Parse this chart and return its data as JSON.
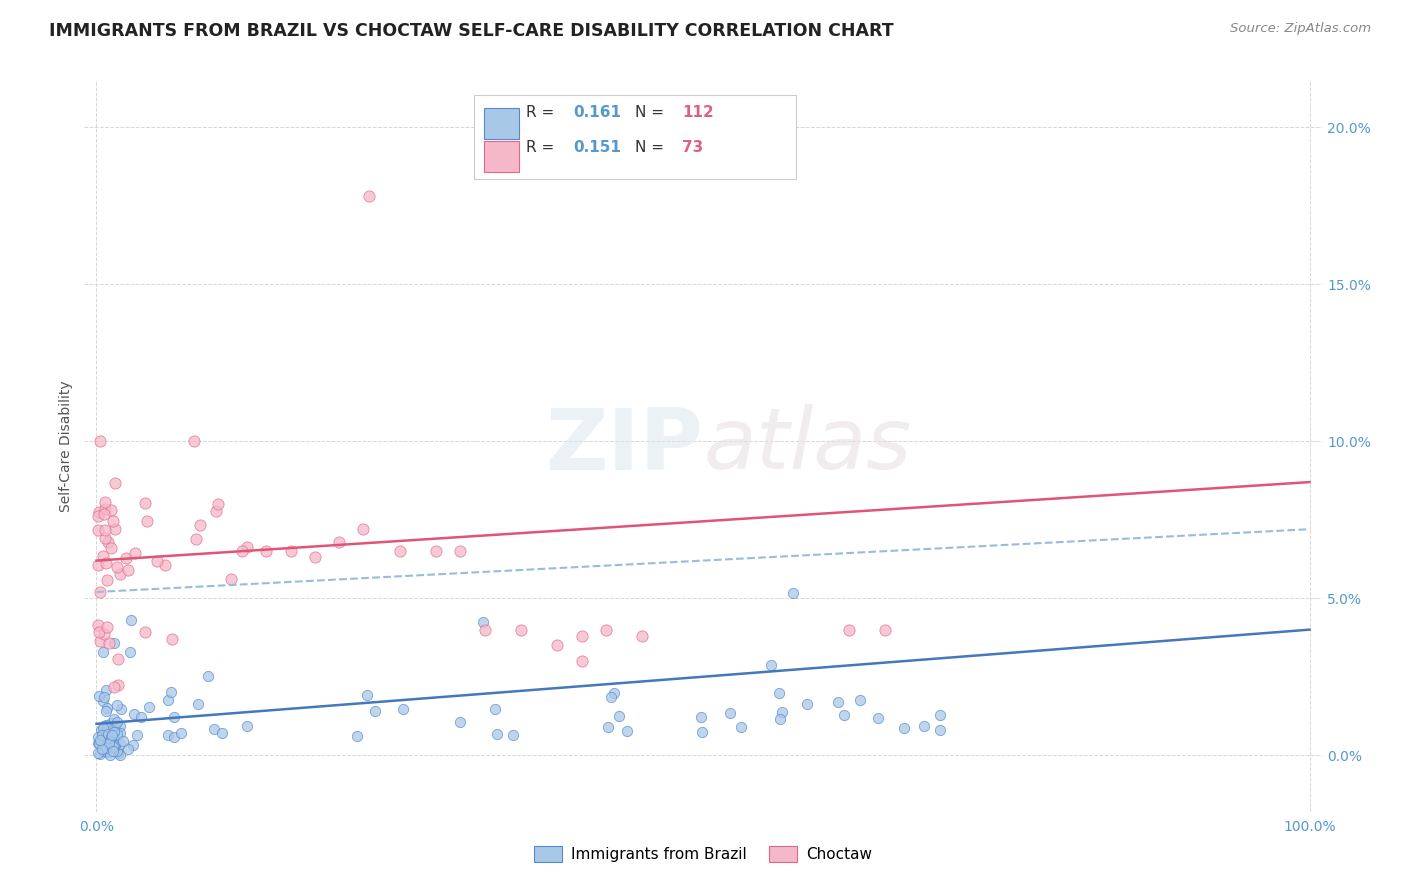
{
  "title": "IMMIGRANTS FROM BRAZIL VS CHOCTAW SELF-CARE DISABILITY CORRELATION CHART",
  "source_text": "Source: ZipAtlas.com",
  "ylabel": "Self-Care Disability",
  "xlim": [
    -0.01,
    1.01
  ],
  "ylim": [
    -0.018,
    0.215
  ],
  "xtick_values": [
    0.0,
    1.0
  ],
  "xtick_labels": [
    "0.0%",
    "100.0%"
  ],
  "ytick_values": [
    0.0,
    0.05,
    0.1,
    0.15,
    0.2
  ],
  "ytick_labels": [
    "0.0%",
    "5.0%",
    "10.0%",
    "15.0%",
    "20.0%"
  ],
  "brazil_face": "#a8c8e8",
  "brazil_edge": "#5588cc",
  "choctaw_face": "#f5b8c8",
  "choctaw_edge": "#e06888",
  "brazil_line_color": "#4477bb",
  "choctaw_line_color": "#e05575",
  "dashed_line_color": "#99bbdd",
  "legend_R_brazil": "0.161",
  "legend_N_brazil": "112",
  "legend_R_choctaw": "0.151",
  "legend_N_choctaw": "73",
  "watermark_zip": "ZIP",
  "watermark_atlas": "atlas",
  "background_color": "#ffffff",
  "grid_color": "#cccccc",
  "tick_color": "#5599cc",
  "title_color": "#222222",
  "source_color": "#888888",
  "ylabel_color": "#555555"
}
